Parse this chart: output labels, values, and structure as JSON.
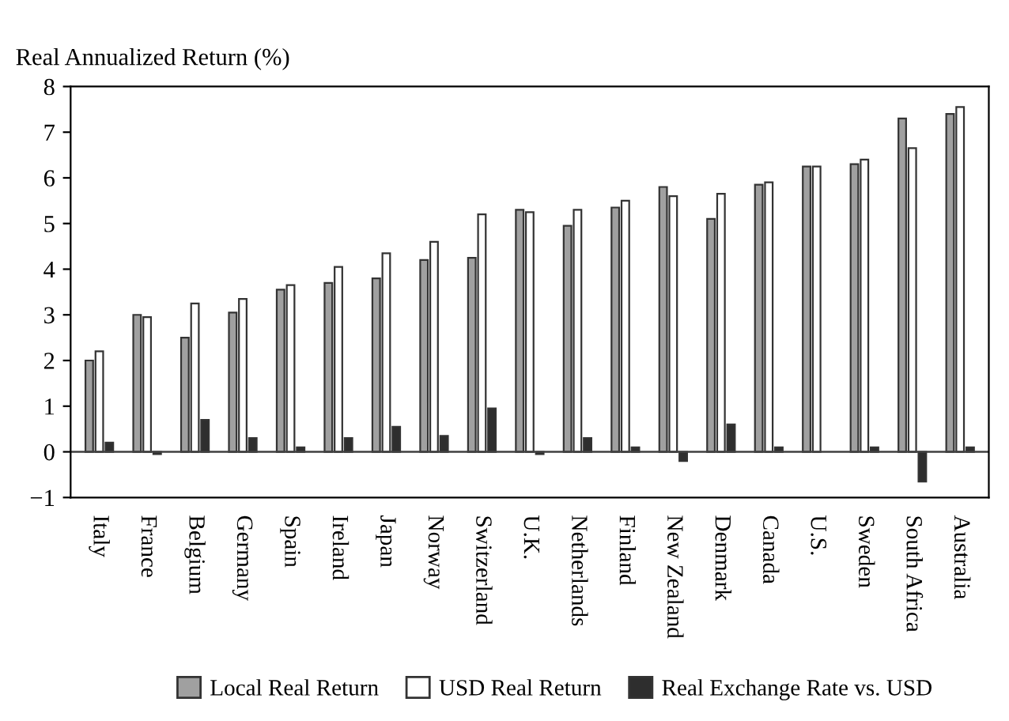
{
  "chart_data": {
    "type": "bar",
    "ylabel": "Real Annualized Return (%)",
    "categories": [
      "Italy",
      "France",
      "Belgium",
      "Germany",
      "Spain",
      "Ireland",
      "Japan",
      "Norway",
      "Switzerland",
      "U.K.",
      "Netherlands",
      "Finland",
      "New Zealand",
      "Denmark",
      "Canada",
      "U.S.",
      "Sweden",
      "South Africa",
      "Australia"
    ],
    "series": [
      {
        "name": "Local Real Return",
        "color": "#a0a0a0",
        "values": [
          2.0,
          3.0,
          2.5,
          3.05,
          3.55,
          3.7,
          3.8,
          4.2,
          4.25,
          5.3,
          4.95,
          5.35,
          5.8,
          5.1,
          5.85,
          6.25,
          6.3,
          7.3,
          7.4
        ]
      },
      {
        "name": "USD Real Return",
        "color": "#ffffff",
        "values": [
          2.2,
          2.95,
          3.25,
          3.35,
          3.65,
          4.05,
          4.35,
          4.6,
          5.2,
          5.25,
          5.3,
          5.5,
          5.6,
          5.65,
          5.9,
          6.25,
          6.4,
          6.65,
          7.55
        ]
      },
      {
        "name": "Real Exchange Rate vs. USD",
        "color": "#2e2e2e",
        "values": [
          0.2,
          -0.05,
          0.7,
          0.3,
          0.1,
          0.3,
          0.55,
          0.35,
          0.95,
          -0.05,
          0.3,
          0.1,
          -0.2,
          0.6,
          0.1,
          null,
          0.1,
          -0.65,
          0.1
        ]
      }
    ],
    "ylim": [
      -1,
      8
    ],
    "yticks": [
      -1,
      0,
      1,
      2,
      3,
      4,
      5,
      6,
      7,
      8
    ],
    "ref_lines": [
      {
        "axis": "y",
        "value": 0,
        "color": "#404040"
      }
    ],
    "grid": false,
    "legend": "bottom"
  }
}
